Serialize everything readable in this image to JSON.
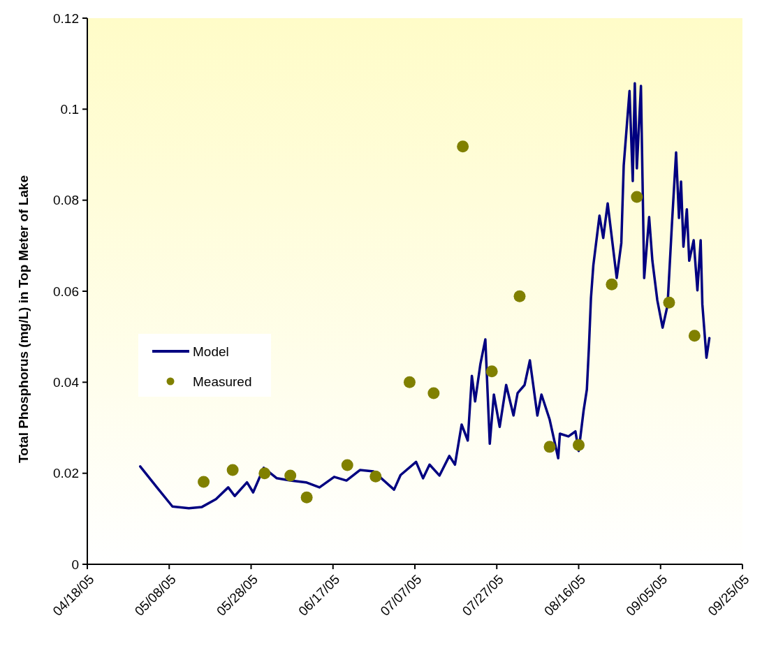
{
  "chart_data": {
    "type": "line",
    "ylabel": "Total Phosphorus (mg/L) in Top Meter of Lake",
    "xlim": [
      "2005-04-18",
      "2005-09-25"
    ],
    "xticks": [
      {
        "value": "2005-04-18",
        "label": "04/18/05"
      },
      {
        "value": "2005-05-08",
        "label": "05/08/05"
      },
      {
        "value": "2005-05-28",
        "label": "05/28/05"
      },
      {
        "value": "2005-06-17",
        "label": "06/17/05"
      },
      {
        "value": "2005-07-07",
        "label": "07/07/05"
      },
      {
        "value": "2005-07-27",
        "label": "07/27/05"
      },
      {
        "value": "2005-08-16",
        "label": "08/16/05"
      },
      {
        "value": "2005-09-05",
        "label": "09/05/05"
      },
      {
        "value": "2005-09-25",
        "label": "09/25/05"
      }
    ],
    "ylim": [
      0,
      0.12
    ],
    "yticks": [
      0,
      0.02,
      0.04,
      0.06,
      0.08,
      0.1,
      0.12
    ],
    "grid": false,
    "legend": "left",
    "series": [
      {
        "name": "Model",
        "type": "line",
        "color": "#000080",
        "marker": "none",
        "line_style": "solid",
        "x": [
          "2005-04-30T22:00",
          "2005-05-05T00:00",
          "2005-05-08T19:00",
          "2005-05-12T19:00",
          "2005-05-16T00:00",
          "2005-05-19T10:00",
          "2005-05-22T10:00",
          "2005-05-24T00:00",
          "2005-05-27T00:00",
          "2005-05-28T12:00",
          "2005-05-31T02:00",
          "2005-06-03T07:00",
          "2005-06-06T14:00",
          "2005-06-10T10:00",
          "2005-06-13T17:00",
          "2005-06-17T07:00",
          "2005-06-20T07:00",
          "2005-06-23T14:00",
          "2005-06-26T22:00",
          "2005-07-01T22:00",
          "2005-07-03T12:00",
          "2005-07-07T07:00",
          "2005-07-09T00:00",
          "2005-07-10T14:00",
          "2005-07-13T00:00",
          "2005-07-15T10:00",
          "2005-07-16T19:00",
          "2005-07-18T10:00",
          "2005-07-19T22:00",
          "2005-07-20T22:00",
          "2005-07-21T17:00",
          "2005-07-23T00:00",
          "2005-07-24T05:00",
          "2005-07-25T07:00",
          "2005-07-26T07:00",
          "2005-07-27T17:00",
          "2005-07-29T07:00",
          "2005-07-31T02:00",
          "2005-08-01T02:00",
          "2005-08-02T19:00",
          "2005-08-04T02:00",
          "2005-08-05T22:00",
          "2005-08-06T22:00",
          "2005-08-08T22:00",
          "2005-08-11T00:00",
          "2005-08-11T10:00",
          "2005-08-13T12:00",
          "2005-08-15T05:00",
          "2005-08-16T00:00",
          "2005-08-17T05:00",
          "2005-08-18T00:00",
          "2005-08-18T12:00",
          "2005-08-19T00:00",
          "2005-08-19T14:00",
          "2005-08-21T02:00",
          "2005-08-22T00:00",
          "2005-08-23T02:00",
          "2005-08-25T07:00",
          "2005-08-26T10:00",
          "2005-08-27T00:00",
          "2005-08-28T10:00",
          "2005-08-29T05:00",
          "2005-08-29T17:00",
          "2005-08-30T05:00",
          "2005-08-31T05:00",
          "2005-09-01T00:00",
          "2005-09-02T05:00",
          "2005-09-03T00:00",
          "2005-09-04T05:00",
          "2005-09-05T12:00",
          "2005-09-06T17:00",
          "2005-09-07T19:00",
          "2005-09-08T19:00",
          "2005-09-09T12:00",
          "2005-09-10T00:00",
          "2005-09-10T14:00",
          "2005-09-11T10:00",
          "2005-09-12T00:00",
          "2005-09-13T02:00",
          "2005-09-14T00:00",
          "2005-09-14T19:00",
          "2005-09-15T05:00",
          "2005-09-16T05:00",
          "2005-09-16T22:00"
        ],
        "values": [
          0.0215,
          0.0169,
          0.0127,
          0.0123,
          0.0126,
          0.0143,
          0.0169,
          0.015,
          0.018,
          0.0158,
          0.0212,
          0.0189,
          0.0184,
          0.018,
          0.0169,
          0.0192,
          0.0184,
          0.0207,
          0.0204,
          0.0164,
          0.0196,
          0.0225,
          0.0189,
          0.0219,
          0.0195,
          0.0238,
          0.0219,
          0.0307,
          0.0272,
          0.0414,
          0.0358,
          0.044,
          0.0494,
          0.0265,
          0.0373,
          0.0302,
          0.0394,
          0.0327,
          0.0376,
          0.0394,
          0.0448,
          0.0327,
          0.0373,
          0.0318,
          0.0233,
          0.0287,
          0.0281,
          0.0292,
          0.0249,
          0.0338,
          0.0384,
          0.0476,
          0.0585,
          0.0657,
          0.0766,
          0.0717,
          0.0793,
          0.0629,
          0.0706,
          0.0876,
          0.104,
          0.0842,
          0.1057,
          0.087,
          0.1051,
          0.0629,
          0.0763,
          0.0667,
          0.058,
          0.052,
          0.0569,
          0.075,
          0.0905,
          0.0761,
          0.0841,
          0.0698,
          0.078,
          0.0667,
          0.0712,
          0.0602,
          0.0712,
          0.0571,
          0.0454,
          0.0497
        ]
      },
      {
        "name": "Measured",
        "type": "scatter",
        "color": "#808000",
        "marker": "circle",
        "x": [
          "2005-05-16T10:00",
          "2005-05-23T12:00",
          "2005-05-31T07:00",
          "2005-06-06T14:00",
          "2005-06-10T14:00",
          "2005-06-20T12:00",
          "2005-06-27T10:00",
          "2005-07-05T17:00",
          "2005-07-11T14:00",
          "2005-07-18T17:00",
          "2005-07-25T19:00",
          "2005-08-01T14:00",
          "2005-08-08T22:00",
          "2005-08-16T00:00",
          "2005-08-24T02:00",
          "2005-08-30T05:00",
          "2005-09-07T02:00",
          "2005-09-13T07:00"
        ],
        "values": [
          0.0181,
          0.0207,
          0.02,
          0.0195,
          0.0147,
          0.0218,
          0.0193,
          0.04,
          0.0376,
          0.0918,
          0.0424,
          0.0589,
          0.0258,
          0.0262,
          0.0615,
          0.0807,
          0.0575,
          0.0502
        ]
      }
    ]
  }
}
